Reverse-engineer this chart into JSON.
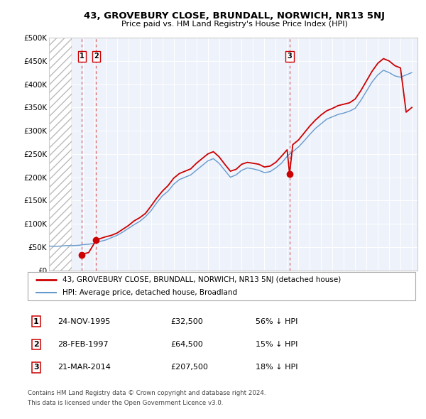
{
  "title": "43, GROVEBURY CLOSE, BRUNDALL, NORWICH, NR13 5NJ",
  "subtitle": "Price paid vs. HM Land Registry's House Price Index (HPI)",
  "legend_property": "43, GROVEBURY CLOSE, BRUNDALL, NORWICH, NR13 5NJ (detached house)",
  "legend_hpi": "HPI: Average price, detached house, Broadland",
  "footer1": "Contains HM Land Registry data © Crown copyright and database right 2024.",
  "footer2": "This data is licensed under the Open Government Licence v3.0.",
  "transactions": [
    {
      "num": 1,
      "date": "24-NOV-1995",
      "price": 32500,
      "pct": "56%",
      "dir": "↓"
    },
    {
      "num": 2,
      "date": "28-FEB-1997",
      "price": 64500,
      "pct": "15%",
      "dir": "↓"
    },
    {
      "num": 3,
      "date": "21-MAR-2014",
      "price": 207500,
      "pct": "18%",
      "dir": "↓"
    }
  ],
  "transaction_dates": [
    1995.9,
    1997.16,
    2014.22
  ],
  "transaction_prices": [
    32500,
    64500,
    207500
  ],
  "xlim": [
    1993,
    2025.5
  ],
  "ylim": [
    0,
    500000
  ],
  "yticks": [
    0,
    50000,
    100000,
    150000,
    200000,
    250000,
    300000,
    350000,
    400000,
    450000,
    500000
  ],
  "ytick_labels": [
    "£0",
    "£50K",
    "£100K",
    "£150K",
    "£200K",
    "£250K",
    "£300K",
    "£350K",
    "£400K",
    "£450K",
    "£500K"
  ],
  "hatch_end_year": 1995.0,
  "red_color": "#cc0000",
  "blue_color": "#6699cc",
  "hpi_data": [
    [
      1993.0,
      52000
    ],
    [
      1993.25,
      51800
    ],
    [
      1993.5,
      51500
    ],
    [
      1993.75,
      51700
    ],
    [
      1994.0,
      52000
    ],
    [
      1994.25,
      52500
    ],
    [
      1994.5,
      53000
    ],
    [
      1994.75,
      53000
    ],
    [
      1995.0,
      53000
    ],
    [
      1995.25,
      53200
    ],
    [
      1995.5,
      53500
    ],
    [
      1995.75,
      54000
    ],
    [
      1996.0,
      55000
    ],
    [
      1996.25,
      55500
    ],
    [
      1996.5,
      56000
    ],
    [
      1996.75,
      57000
    ],
    [
      1997.0,
      58000
    ],
    [
      1997.5,
      62000
    ],
    [
      1998.0,
      65000
    ],
    [
      1998.5,
      70000
    ],
    [
      1999.0,
      75000
    ],
    [
      1999.5,
      82000
    ],
    [
      2000.0,
      90000
    ],
    [
      2000.5,
      98000
    ],
    [
      2001.0,
      105000
    ],
    [
      2001.5,
      115000
    ],
    [
      2002.0,
      128000
    ],
    [
      2002.5,
      145000
    ],
    [
      2003.0,
      160000
    ],
    [
      2003.5,
      170000
    ],
    [
      2004.0,
      185000
    ],
    [
      2004.5,
      195000
    ],
    [
      2005.0,
      200000
    ],
    [
      2005.5,
      205000
    ],
    [
      2006.0,
      215000
    ],
    [
      2006.5,
      225000
    ],
    [
      2007.0,
      235000
    ],
    [
      2007.5,
      240000
    ],
    [
      2008.0,
      230000
    ],
    [
      2008.5,
      215000
    ],
    [
      2009.0,
      200000
    ],
    [
      2009.5,
      205000
    ],
    [
      2010.0,
      215000
    ],
    [
      2010.5,
      220000
    ],
    [
      2011.0,
      218000
    ],
    [
      2011.5,
      215000
    ],
    [
      2012.0,
      210000
    ],
    [
      2012.5,
      212000
    ],
    [
      2013.0,
      220000
    ],
    [
      2013.5,
      230000
    ],
    [
      2014.0,
      245000
    ],
    [
      2014.5,
      255000
    ],
    [
      2015.0,
      265000
    ],
    [
      2015.5,
      278000
    ],
    [
      2016.0,
      292000
    ],
    [
      2016.5,
      305000
    ],
    [
      2017.0,
      315000
    ],
    [
      2017.5,
      325000
    ],
    [
      2018.0,
      330000
    ],
    [
      2018.5,
      335000
    ],
    [
      2019.0,
      338000
    ],
    [
      2019.5,
      342000
    ],
    [
      2020.0,
      348000
    ],
    [
      2020.5,
      365000
    ],
    [
      2021.0,
      385000
    ],
    [
      2021.5,
      405000
    ],
    [
      2022.0,
      420000
    ],
    [
      2022.5,
      430000
    ],
    [
      2023.0,
      425000
    ],
    [
      2023.5,
      418000
    ],
    [
      2024.0,
      415000
    ],
    [
      2024.5,
      420000
    ],
    [
      2025.0,
      425000
    ]
  ],
  "property_data": [
    [
      1995.9,
      32500
    ],
    [
      1996.0,
      35000
    ],
    [
      1996.5,
      38000
    ],
    [
      1997.16,
      64500
    ],
    [
      1997.5,
      68000
    ],
    [
      1998.0,
      72000
    ],
    [
      1998.5,
      75000
    ],
    [
      1999.0,
      80000
    ],
    [
      1999.5,
      88000
    ],
    [
      2000.0,
      96000
    ],
    [
      2000.5,
      106000
    ],
    [
      2001.0,
      113000
    ],
    [
      2001.5,
      122000
    ],
    [
      2002.0,
      138000
    ],
    [
      2002.5,
      155000
    ],
    [
      2003.0,
      170000
    ],
    [
      2003.5,
      182000
    ],
    [
      2004.0,
      198000
    ],
    [
      2004.5,
      208000
    ],
    [
      2005.0,
      213000
    ],
    [
      2005.5,
      218000
    ],
    [
      2006.0,
      230000
    ],
    [
      2006.5,
      240000
    ],
    [
      2007.0,
      250000
    ],
    [
      2007.5,
      255000
    ],
    [
      2008.0,
      244000
    ],
    [
      2008.5,
      228000
    ],
    [
      2009.0,
      213000
    ],
    [
      2009.5,
      217000
    ],
    [
      2010.0,
      228000
    ],
    [
      2010.5,
      232000
    ],
    [
      2011.0,
      230000
    ],
    [
      2011.5,
      228000
    ],
    [
      2012.0,
      222000
    ],
    [
      2012.5,
      224000
    ],
    [
      2013.0,
      232000
    ],
    [
      2013.5,
      245000
    ],
    [
      2014.0,
      259000
    ],
    [
      2014.22,
      207500
    ],
    [
      2014.5,
      270000
    ],
    [
      2015.0,
      280000
    ],
    [
      2015.5,
      295000
    ],
    [
      2016.0,
      310000
    ],
    [
      2016.5,
      323000
    ],
    [
      2017.0,
      334000
    ],
    [
      2017.5,
      343000
    ],
    [
      2018.0,
      348000
    ],
    [
      2018.5,
      354000
    ],
    [
      2019.0,
      357000
    ],
    [
      2019.5,
      360000
    ],
    [
      2020.0,
      368000
    ],
    [
      2020.5,
      386000
    ],
    [
      2021.0,
      407000
    ],
    [
      2021.5,
      428000
    ],
    [
      2022.0,
      445000
    ],
    [
      2022.5,
      455000
    ],
    [
      2023.0,
      450000
    ],
    [
      2023.5,
      440000
    ],
    [
      2024.0,
      435000
    ],
    [
      2024.5,
      340000
    ],
    [
      2025.0,
      350000
    ]
  ],
  "fig_width": 6.0,
  "fig_height": 5.9,
  "dpi": 100
}
